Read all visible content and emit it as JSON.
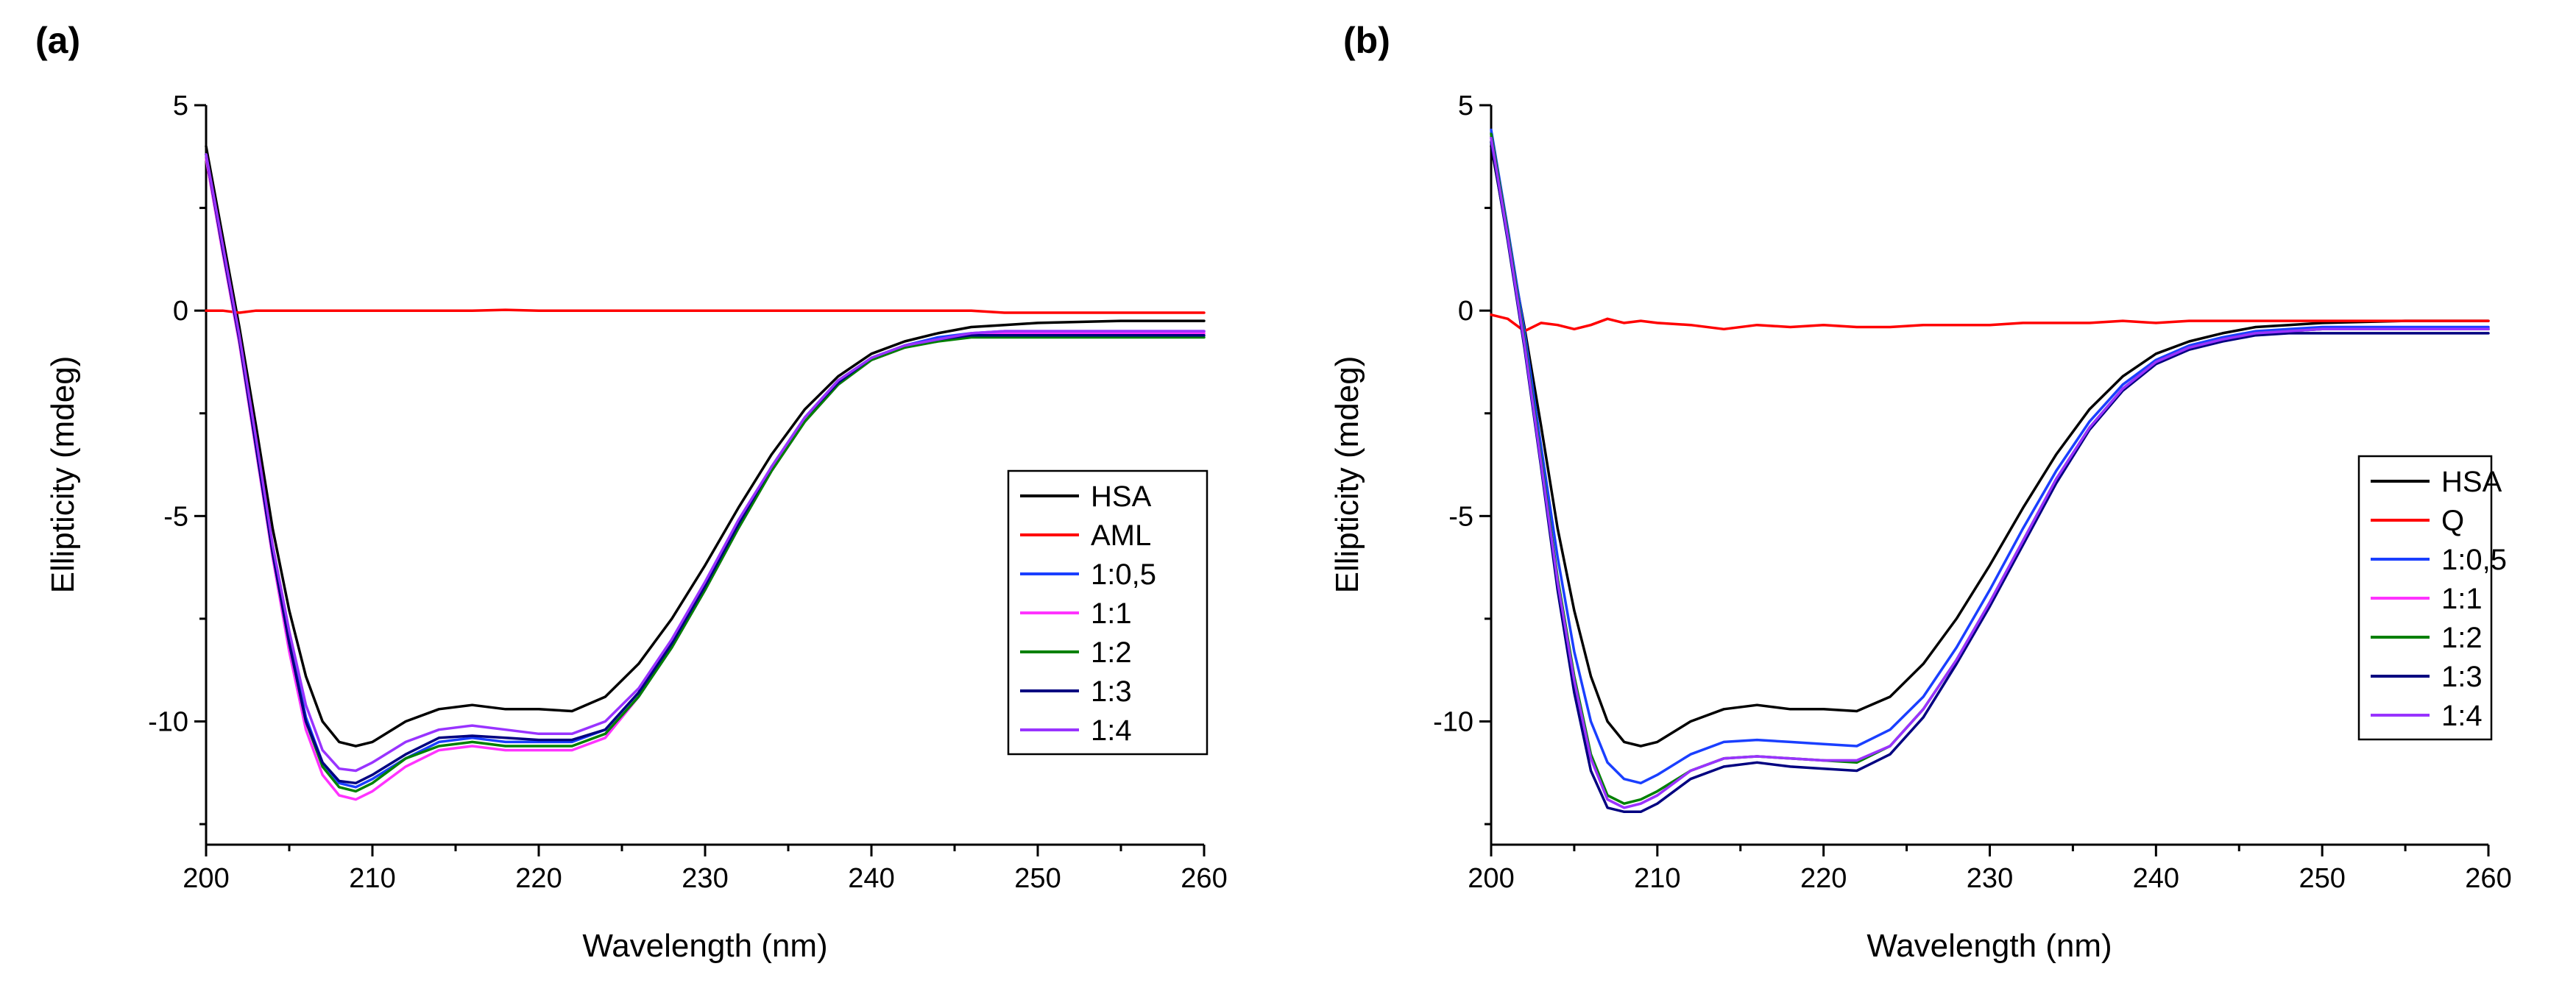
{
  "colors": {
    "HSA": "#000000",
    "AML": "#ff0000",
    "Q": "#ff0000",
    "1:0,5": "#1a3fff",
    "1:1": "#ff33ff",
    "1:2": "#008000",
    "1:3": "#000080",
    "1:4": "#9933ff"
  },
  "chart_data": [
    {
      "type": "line",
      "panel_label": "(a)",
      "xlabel": "Wavelength (nm)",
      "ylabel": "Ellipticity (mdeg)",
      "xlim": [
        200,
        260
      ],
      "ylim": [
        -13,
        5
      ],
      "x_ticks": [
        "200",
        "210",
        "220",
        "230",
        "240",
        "250",
        "260"
      ],
      "y_ticks": [
        "5",
        "0",
        "-5",
        "-10"
      ],
      "legend_position": "right-middle",
      "x": [
        200,
        201,
        202,
        203,
        204,
        205,
        206,
        207,
        208,
        209,
        210,
        212,
        214,
        216,
        218,
        220,
        222,
        224,
        226,
        228,
        230,
        232,
        234,
        236,
        238,
        240,
        242,
        244,
        246,
        248,
        250,
        255,
        260
      ],
      "series": [
        {
          "name": "HSA",
          "values": [
            4.0,
            1.8,
            -0.4,
            -2.8,
            -5.3,
            -7.3,
            -8.9,
            -10.0,
            -10.5,
            -10.6,
            -10.5,
            -10.0,
            -9.7,
            -9.6,
            -9.7,
            -9.7,
            -9.75,
            -9.4,
            -8.6,
            -7.5,
            -6.2,
            -4.8,
            -3.5,
            -2.4,
            -1.6,
            -1.05,
            -0.75,
            -0.55,
            -0.4,
            -0.35,
            -0.3,
            -0.25,
            -0.25
          ]
        },
        {
          "name": "AML",
          "values": [
            0.0,
            0.0,
            -0.05,
            0.0,
            0.0,
            0.0,
            0.0,
            0.0,
            0.0,
            0.0,
            0.0,
            0.0,
            0.0,
            0.0,
            0.02,
            0.0,
            0.0,
            0.0,
            0.0,
            0.0,
            0.0,
            0.0,
            0.0,
            0.0,
            0.0,
            0.0,
            0.0,
            0.0,
            0.0,
            -0.05,
            -0.05,
            -0.05,
            -0.05
          ]
        },
        {
          "name": "1:0,5",
          "values": [
            3.8,
            1.5,
            -0.7,
            -3.2,
            -5.8,
            -8.0,
            -9.9,
            -11.0,
            -11.5,
            -11.6,
            -11.4,
            -10.9,
            -10.5,
            -10.4,
            -10.5,
            -10.5,
            -10.5,
            -10.2,
            -9.3,
            -8.1,
            -6.7,
            -5.2,
            -3.8,
            -2.6,
            -1.7,
            -1.15,
            -0.85,
            -0.65,
            -0.55,
            -0.5,
            -0.5,
            -0.5,
            -0.5
          ]
        },
        {
          "name": "1:1",
          "values": [
            3.7,
            1.4,
            -0.8,
            -3.4,
            -6.0,
            -8.3,
            -10.2,
            -11.3,
            -11.8,
            -11.9,
            -11.7,
            -11.1,
            -10.7,
            -10.6,
            -10.7,
            -10.7,
            -10.7,
            -10.4,
            -9.4,
            -8.2,
            -6.8,
            -5.3,
            -3.9,
            -2.7,
            -1.8,
            -1.2,
            -0.9,
            -0.7,
            -0.6,
            -0.55,
            -0.55,
            -0.55,
            -0.55
          ]
        },
        {
          "name": "1:2",
          "values": [
            3.8,
            1.5,
            -0.7,
            -3.3,
            -5.9,
            -8.1,
            -10.0,
            -11.1,
            -11.6,
            -11.7,
            -11.5,
            -10.9,
            -10.6,
            -10.5,
            -10.6,
            -10.6,
            -10.6,
            -10.3,
            -9.4,
            -8.2,
            -6.8,
            -5.3,
            -3.9,
            -2.7,
            -1.8,
            -1.2,
            -0.9,
            -0.75,
            -0.65,
            -0.65,
            -0.65,
            -0.65,
            -0.65
          ]
        },
        {
          "name": "1:3",
          "values": [
            3.8,
            1.5,
            -0.7,
            -3.3,
            -5.9,
            -8.1,
            -10.0,
            -11.0,
            -11.45,
            -11.5,
            -11.3,
            -10.8,
            -10.4,
            -10.35,
            -10.4,
            -10.45,
            -10.45,
            -10.2,
            -9.3,
            -8.1,
            -6.7,
            -5.2,
            -3.8,
            -2.6,
            -1.75,
            -1.15,
            -0.85,
            -0.7,
            -0.6,
            -0.6,
            -0.6,
            -0.6,
            -0.6
          ]
        },
        {
          "name": "1:4",
          "values": [
            3.8,
            1.6,
            -0.6,
            -3.1,
            -5.7,
            -7.8,
            -9.6,
            -10.7,
            -11.15,
            -11.2,
            -11.0,
            -10.5,
            -10.2,
            -10.1,
            -10.2,
            -10.3,
            -10.3,
            -10.0,
            -9.2,
            -8.0,
            -6.6,
            -5.1,
            -3.8,
            -2.6,
            -1.7,
            -1.15,
            -0.85,
            -0.7,
            -0.55,
            -0.5,
            -0.5,
            -0.5,
            -0.5
          ]
        }
      ]
    },
    {
      "type": "line",
      "panel_label": "(b)",
      "xlabel": "Wavelength (nm)",
      "ylabel": "Ellipticity (mdeg)",
      "xlim": [
        200,
        260
      ],
      "ylim": [
        -13,
        5
      ],
      "x_ticks": [
        "200",
        "210",
        "220",
        "230",
        "240",
        "250",
        "260"
      ],
      "y_ticks": [
        "5",
        "0",
        "-5",
        "-10"
      ],
      "legend_position": "top-right",
      "x": [
        200,
        201,
        202,
        203,
        204,
        205,
        206,
        207,
        208,
        209,
        210,
        212,
        214,
        216,
        218,
        220,
        222,
        224,
        226,
        228,
        230,
        232,
        234,
        236,
        238,
        240,
        242,
        244,
        246,
        248,
        250,
        255,
        260
      ],
      "series": [
        {
          "name": "HSA",
          "values": [
            4.0,
            1.8,
            -0.4,
            -2.8,
            -5.3,
            -7.3,
            -8.9,
            -10.0,
            -10.5,
            -10.6,
            -10.5,
            -10.0,
            -9.7,
            -9.6,
            -9.7,
            -9.7,
            -9.75,
            -9.4,
            -8.6,
            -7.5,
            -6.2,
            -4.8,
            -3.5,
            -2.4,
            -1.6,
            -1.05,
            -0.75,
            -0.55,
            -0.4,
            -0.35,
            -0.3,
            -0.25,
            -0.25
          ]
        },
        {
          "name": "Q",
          "values": [
            -0.1,
            -0.2,
            -0.5,
            -0.3,
            -0.35,
            -0.45,
            -0.35,
            -0.2,
            -0.3,
            -0.25,
            -0.3,
            -0.35,
            -0.45,
            -0.35,
            -0.4,
            -0.35,
            -0.4,
            -0.4,
            -0.35,
            -0.35,
            -0.35,
            -0.3,
            -0.3,
            -0.3,
            -0.25,
            -0.3,
            -0.25,
            -0.25,
            -0.25,
            -0.25,
            -0.25,
            -0.25,
            -0.25
          ]
        },
        {
          "name": "1:0,5",
          "values": [
            4.4,
            2.0,
            -0.5,
            -3.3,
            -6.0,
            -8.3,
            -10.0,
            -11.0,
            -11.4,
            -11.5,
            -11.3,
            -10.8,
            -10.5,
            -10.45,
            -10.5,
            -10.55,
            -10.6,
            -10.2,
            -9.4,
            -8.2,
            -6.8,
            -5.3,
            -3.9,
            -2.7,
            -1.8,
            -1.2,
            -0.85,
            -0.65,
            -0.5,
            -0.45,
            -0.4,
            -0.4,
            -0.4
          ]
        },
        {
          "name": "1:1",
          "values": [
            4.2,
            1.8,
            -0.8,
            -3.7,
            -6.6,
            -9.0,
            -10.9,
            -11.9,
            -12.1,
            -12.0,
            -11.8,
            -11.2,
            -10.9,
            -10.85,
            -10.9,
            -10.95,
            -10.95,
            -10.6,
            -9.7,
            -8.5,
            -7.1,
            -5.6,
            -4.1,
            -2.85,
            -1.9,
            -1.25,
            -0.9,
            -0.7,
            -0.55,
            -0.5,
            -0.45,
            -0.45,
            -0.45
          ]
        },
        {
          "name": "1:2",
          "values": [
            4.3,
            1.9,
            -0.7,
            -3.6,
            -6.5,
            -8.9,
            -10.8,
            -11.8,
            -12.0,
            -11.9,
            -11.7,
            -11.2,
            -10.9,
            -10.85,
            -10.9,
            -10.95,
            -11.0,
            -10.6,
            -9.7,
            -8.5,
            -7.1,
            -5.6,
            -4.1,
            -2.85,
            -1.9,
            -1.25,
            -0.9,
            -0.7,
            -0.55,
            -0.5,
            -0.45,
            -0.45,
            -0.45
          ]
        },
        {
          "name": "1:3",
          "values": [
            4.1,
            1.7,
            -0.9,
            -3.8,
            -6.8,
            -9.3,
            -11.2,
            -12.1,
            -12.2,
            -12.2,
            -12.0,
            -11.4,
            -11.1,
            -11.0,
            -11.1,
            -11.15,
            -11.2,
            -10.8,
            -9.9,
            -8.6,
            -7.2,
            -5.7,
            -4.2,
            -2.9,
            -1.95,
            -1.3,
            -0.95,
            -0.75,
            -0.6,
            -0.55,
            -0.55,
            -0.55,
            -0.55
          ]
        },
        {
          "name": "1:4",
          "values": [
            4.2,
            1.8,
            -0.8,
            -3.7,
            -6.6,
            -9.0,
            -10.9,
            -11.9,
            -12.1,
            -12.0,
            -11.8,
            -11.2,
            -10.9,
            -10.85,
            -10.9,
            -10.95,
            -10.95,
            -10.6,
            -9.7,
            -8.5,
            -7.1,
            -5.6,
            -4.1,
            -2.85,
            -1.9,
            -1.25,
            -0.9,
            -0.7,
            -0.55,
            -0.5,
            -0.45,
            -0.45,
            -0.45
          ]
        }
      ]
    }
  ]
}
